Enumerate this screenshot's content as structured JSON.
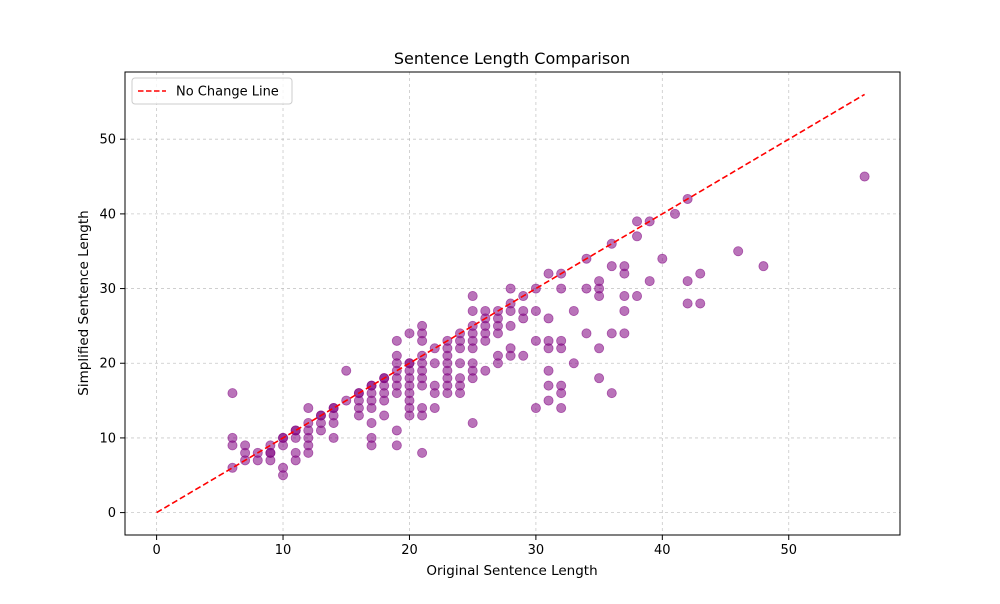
{
  "chart_data": {
    "type": "scatter",
    "title": "Sentence Length Comparison",
    "xlabel": "Original Sentence Length",
    "ylabel": "Simplified Sentence Length",
    "xlim": [
      -2.5,
      58.8
    ],
    "ylim": [
      -3.0,
      59.0
    ],
    "xticks": [
      0,
      10,
      20,
      30,
      40,
      50
    ],
    "yticks": [
      0,
      10,
      20,
      30,
      40,
      50
    ],
    "grid": true,
    "legend": {
      "position": "top-left",
      "entries": [
        "No Change Line"
      ]
    },
    "line": {
      "name": "No Change Line",
      "x": [
        0,
        56
      ],
      "y": [
        0,
        56
      ],
      "color": "#ff0000",
      "style": "dashed"
    },
    "points": [
      [
        6,
        6
      ],
      [
        6,
        16
      ],
      [
        6,
        10
      ],
      [
        6,
        9
      ],
      [
        7,
        7
      ],
      [
        7,
        8
      ],
      [
        7,
        9
      ],
      [
        8,
        8
      ],
      [
        8,
        7
      ],
      [
        9,
        9
      ],
      [
        9,
        8
      ],
      [
        9,
        7
      ],
      [
        9,
        8
      ],
      [
        10,
        10
      ],
      [
        10,
        9
      ],
      [
        10,
        6
      ],
      [
        10,
        5
      ],
      [
        10,
        10
      ],
      [
        11,
        11
      ],
      [
        11,
        10
      ],
      [
        11,
        8
      ],
      [
        11,
        7
      ],
      [
        11,
        11
      ],
      [
        12,
        12
      ],
      [
        12,
        14
      ],
      [
        12,
        11
      ],
      [
        12,
        10
      ],
      [
        12,
        9
      ],
      [
        12,
        8
      ],
      [
        13,
        13
      ],
      [
        13,
        12
      ],
      [
        13,
        11
      ],
      [
        13,
        13
      ],
      [
        14,
        14
      ],
      [
        14,
        13
      ],
      [
        14,
        12
      ],
      [
        14,
        10
      ],
      [
        14,
        14
      ],
      [
        15,
        19
      ],
      [
        15,
        15
      ],
      [
        16,
        16
      ],
      [
        16,
        15
      ],
      [
        16,
        14
      ],
      [
        16,
        13
      ],
      [
        16,
        16
      ],
      [
        17,
        17
      ],
      [
        17,
        16
      ],
      [
        17,
        15
      ],
      [
        17,
        14
      ],
      [
        17,
        12
      ],
      [
        17,
        10
      ],
      [
        17,
        9
      ],
      [
        17,
        17
      ],
      [
        18,
        18
      ],
      [
        18,
        17
      ],
      [
        18,
        16
      ],
      [
        18,
        15
      ],
      [
        18,
        13
      ],
      [
        18,
        18
      ],
      [
        19,
        19
      ],
      [
        19,
        23
      ],
      [
        19,
        21
      ],
      [
        19,
        20
      ],
      [
        19,
        18
      ],
      [
        19,
        17
      ],
      [
        19,
        16
      ],
      [
        19,
        11
      ],
      [
        19,
        9
      ],
      [
        20,
        20
      ],
      [
        20,
        24
      ],
      [
        20,
        19
      ],
      [
        20,
        18
      ],
      [
        20,
        17
      ],
      [
        20,
        16
      ],
      [
        20,
        15
      ],
      [
        20,
        14
      ],
      [
        20,
        13
      ],
      [
        20,
        20
      ],
      [
        21,
        21
      ],
      [
        21,
        25
      ],
      [
        21,
        24
      ],
      [
        21,
        23
      ],
      [
        21,
        20
      ],
      [
        21,
        19
      ],
      [
        21,
        18
      ],
      [
        21,
        17
      ],
      [
        21,
        14
      ],
      [
        21,
        13
      ],
      [
        21,
        8
      ],
      [
        22,
        22
      ],
      [
        22,
        20
      ],
      [
        22,
        17
      ],
      [
        22,
        16
      ],
      [
        22,
        14
      ],
      [
        23,
        23
      ],
      [
        23,
        22
      ],
      [
        23,
        21
      ],
      [
        23,
        20
      ],
      [
        23,
        19
      ],
      [
        23,
        18
      ],
      [
        23,
        17
      ],
      [
        23,
        16
      ],
      [
        24,
        24
      ],
      [
        24,
        23
      ],
      [
        24,
        22
      ],
      [
        24,
        20
      ],
      [
        24,
        18
      ],
      [
        24,
        17
      ],
      [
        24,
        16
      ],
      [
        25,
        25
      ],
      [
        25,
        29
      ],
      [
        25,
        27
      ],
      [
        25,
        24
      ],
      [
        25,
        23
      ],
      [
        25,
        22
      ],
      [
        25,
        20
      ],
      [
        25,
        19
      ],
      [
        25,
        18
      ],
      [
        25,
        12
      ],
      [
        26,
        26
      ],
      [
        26,
        27
      ],
      [
        26,
        25
      ],
      [
        26,
        24
      ],
      [
        26,
        23
      ],
      [
        26,
        19
      ],
      [
        27,
        27
      ],
      [
        27,
        26
      ],
      [
        27,
        25
      ],
      [
        27,
        24
      ],
      [
        27,
        21
      ],
      [
        27,
        20
      ],
      [
        28,
        28
      ],
      [
        28,
        30
      ],
      [
        28,
        27
      ],
      [
        28,
        25
      ],
      [
        28,
        22
      ],
      [
        28,
        21
      ],
      [
        29,
        29
      ],
      [
        29,
        27
      ],
      [
        29,
        26
      ],
      [
        29,
        21
      ],
      [
        30,
        30
      ],
      [
        30,
        27
      ],
      [
        30,
        23
      ],
      [
        30,
        14
      ],
      [
        31,
        32
      ],
      [
        31,
        26
      ],
      [
        31,
        23
      ],
      [
        31,
        22
      ],
      [
        31,
        19
      ],
      [
        31,
        17
      ],
      [
        31,
        15
      ],
      [
        32,
        32
      ],
      [
        32,
        30
      ],
      [
        32,
        23
      ],
      [
        32,
        22
      ],
      [
        32,
        17
      ],
      [
        32,
        16
      ],
      [
        32,
        14
      ],
      [
        33,
        27
      ],
      [
        33,
        20
      ],
      [
        34,
        34
      ],
      [
        34,
        30
      ],
      [
        34,
        24
      ],
      [
        35,
        31
      ],
      [
        35,
        30
      ],
      [
        35,
        29
      ],
      [
        35,
        22
      ],
      [
        35,
        18
      ],
      [
        36,
        36
      ],
      [
        36,
        33
      ],
      [
        36,
        24
      ],
      [
        36,
        16
      ],
      [
        37,
        33
      ],
      [
        37,
        32
      ],
      [
        37,
        29
      ],
      [
        37,
        27
      ],
      [
        37,
        24
      ],
      [
        38,
        39
      ],
      [
        38,
        37
      ],
      [
        38,
        29
      ],
      [
        39,
        39
      ],
      [
        39,
        31
      ],
      [
        40,
        34
      ],
      [
        41,
        40
      ],
      [
        42,
        42
      ],
      [
        42,
        31
      ],
      [
        42,
        28
      ],
      [
        43,
        32
      ],
      [
        43,
        28
      ],
      [
        46,
        35
      ],
      [
        48,
        33
      ],
      [
        56,
        45
      ]
    ]
  }
}
